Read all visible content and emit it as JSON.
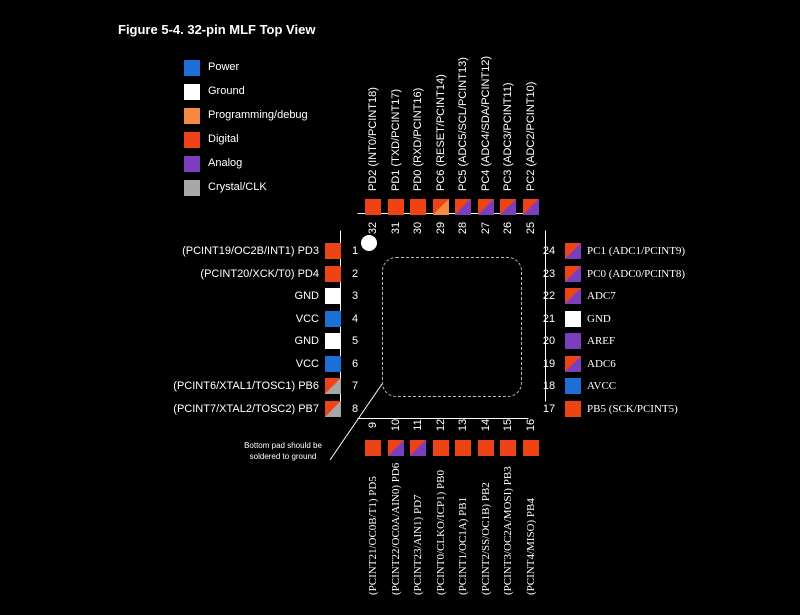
{
  "title": "Figure 5-4.  32-pin MLF Top View",
  "colors": {
    "power": "#1c6fd4",
    "ground": "#ffffff",
    "prog": "#f58a45",
    "digital": "#ee4415",
    "analog": "#7b3ebd",
    "clk": "#a7a7a7"
  },
  "legend": [
    {
      "label": "Power",
      "color": "power"
    },
    {
      "label": "Ground",
      "color": "ground"
    },
    {
      "label": "Programming/debug",
      "color": "prog"
    },
    {
      "label": "Digital",
      "color": "digital"
    },
    {
      "label": "Analog",
      "color": "analog"
    },
    {
      "label": "Crystal/CLK",
      "color": "clk"
    }
  ],
  "left_pins": [
    {
      "num": "1",
      "name": "(PCINT19/OC2B/INT1) PD3",
      "colors": [
        "digital"
      ]
    },
    {
      "num": "2",
      "name": "(PCINT20/XCK/T0) PD4",
      "colors": [
        "digital"
      ]
    },
    {
      "num": "3",
      "name": "GND",
      "colors": [
        "ground"
      ]
    },
    {
      "num": "4",
      "name": "VCC",
      "colors": [
        "power"
      ]
    },
    {
      "num": "5",
      "name": "GND",
      "colors": [
        "ground"
      ]
    },
    {
      "num": "6",
      "name": "VCC",
      "colors": [
        "power"
      ]
    },
    {
      "num": "7",
      "name": "(PCINT6/XTAL1/TOSC1) PB6",
      "colors": [
        "digital",
        "clk"
      ]
    },
    {
      "num": "8",
      "name": "(PCINT7/XTAL2/TOSC2) PB7",
      "colors": [
        "digital",
        "clk"
      ]
    }
  ],
  "right_pins": [
    {
      "num": "24",
      "name": "PC1 (ADC1/PCINT9)",
      "colors": [
        "digital",
        "analog"
      ]
    },
    {
      "num": "23",
      "name": "PC0 (ADC0/PCINT8)",
      "colors": [
        "digital",
        "analog"
      ]
    },
    {
      "num": "22",
      "name": "ADC7",
      "colors": [
        "digital",
        "analog"
      ]
    },
    {
      "num": "21",
      "name": "GND",
      "colors": [
        "ground"
      ]
    },
    {
      "num": "20",
      "name": "AREF",
      "colors": [
        "analog"
      ]
    },
    {
      "num": "19",
      "name": "ADC6",
      "colors": [
        "digital",
        "analog"
      ]
    },
    {
      "num": "18",
      "name": "AVCC",
      "colors": [
        "power"
      ]
    },
    {
      "num": "17",
      "name": "PB5 (SCK/PCINT5)",
      "colors": [
        "digital"
      ]
    }
  ],
  "top_pins": [
    {
      "num": "32",
      "name": "PD2 (INT0/PCINT18)",
      "colors": [
        "digital"
      ]
    },
    {
      "num": "31",
      "name": "PD1 (TXD/PCINT17)",
      "colors": [
        "digital"
      ]
    },
    {
      "num": "30",
      "name": "PD0 (RXD/PCINT16)",
      "colors": [
        "digital"
      ]
    },
    {
      "num": "29",
      "name": "PC6 (RESET/PCINT14)",
      "colors": [
        "digital",
        "prog"
      ]
    },
    {
      "num": "28",
      "name": "PC5 (ADC5/SCL/PCINT13)",
      "colors": [
        "digital",
        "analog"
      ]
    },
    {
      "num": "27",
      "name": "PC4 (ADC4/SDA/PCINT12)",
      "colors": [
        "digital",
        "analog"
      ]
    },
    {
      "num": "26",
      "name": "PC3 (ADC3/PCINT11)",
      "colors": [
        "digital",
        "analog"
      ]
    },
    {
      "num": "25",
      "name": "PC2 (ADC2/PCINT10)",
      "colors": [
        "digital",
        "analog"
      ]
    }
  ],
  "bottom_pins": [
    {
      "num": "9",
      "name": "(PCINT21/OC0B/T1) PD5",
      "colors": [
        "digital"
      ]
    },
    {
      "num": "10",
      "name": "(PCINT22/OC0A/AIN0) PD6",
      "colors": [
        "digital",
        "analog"
      ]
    },
    {
      "num": "11",
      "name": "(PCINT23/AIN1) PD7",
      "colors": [
        "digital",
        "analog"
      ]
    },
    {
      "num": "12",
      "name": "(PCINT0/CLKO/ICP1) PB0",
      "colors": [
        "digital"
      ]
    },
    {
      "num": "13",
      "name": "(PCINT1/OC1A) PB1",
      "colors": [
        "digital"
      ]
    },
    {
      "num": "14",
      "name": "(PCINT2/SS/OC1B) PB2",
      "colors": [
        "digital"
      ]
    },
    {
      "num": "15",
      "name": "(PCINT3/OC2A/MOSI) PB3",
      "colors": [
        "digital"
      ]
    },
    {
      "num": "16",
      "name": "(PCINT4/MISO) PB4",
      "colors": [
        "digital"
      ]
    }
  ],
  "note": "Bottom pad should be soldered to ground"
}
